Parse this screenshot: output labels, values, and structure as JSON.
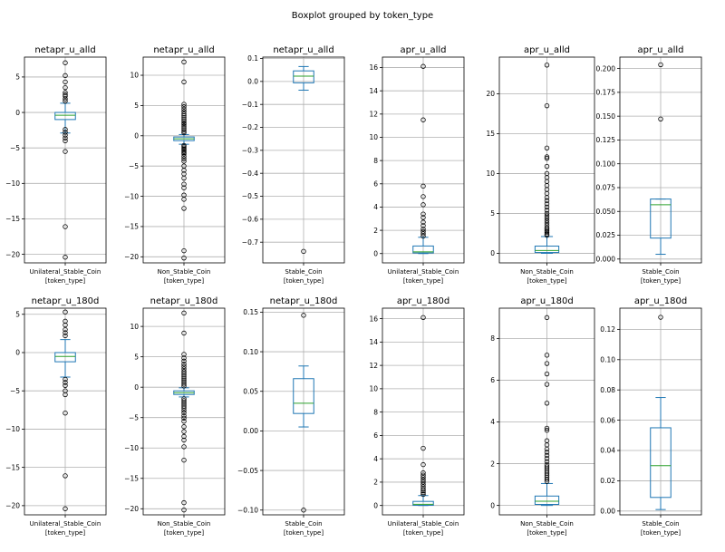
{
  "figure": {
    "suptitle": "Boxplot grouped by token_type"
  },
  "chart_data": [
    {
      "type": "box",
      "title": "netapr_u_alld",
      "category": "Unilateral_Stable_Coin",
      "xlabel": "[token_type]",
      "ylim": [
        -21.2,
        7.8
      ],
      "yticks": [
        5,
        0,
        -5,
        -10,
        -15,
        -20
      ],
      "tick_labels": [
        "5",
        "0",
        "−5",
        "−10",
        "−15",
        "−20"
      ],
      "stats": {
        "whislo": -2.9,
        "q1": -1.0,
        "med": -0.4,
        "q3": 0.0,
        "whishi": 1.3
      },
      "fliers": [
        7.0,
        5.2,
        4.3,
        3.5,
        2.8,
        2.5,
        2.3,
        1.9,
        1.6,
        -2.4,
        -2.8,
        -3.2,
        -3.6,
        -4.0,
        -5.5,
        -16.1,
        -20.4
      ]
    },
    {
      "type": "box",
      "title": "netapr_u_alld",
      "category": "Non_Stable_Coin",
      "xlabel": "[token_type]",
      "ylim": [
        -21.0,
        13.0
      ],
      "yticks": [
        10,
        5,
        0,
        -5,
        -10,
        -15,
        -20
      ],
      "tick_labels": [
        "10",
        "5",
        "0",
        "−5",
        "−10",
        "−15",
        "−20"
      ],
      "stats": {
        "whislo": -1.4,
        "q1": -0.8,
        "med": -0.5,
        "q3": -0.2,
        "whishi": 0.2
      },
      "fliers": [
        12.2,
        8.9,
        5.2,
        4.8,
        4.4,
        4.0,
        3.6,
        3.3,
        3.0,
        2.7,
        2.4,
        2.1,
        1.9,
        1.6,
        1.3,
        1.0,
        0.7,
        0.5,
        -1.6,
        -1.8,
        -2.0,
        -2.2,
        -2.4,
        -2.6,
        -2.8,
        -3.0,
        -3.4,
        -3.8,
        -4.2,
        -5.0,
        -5.7,
        -6.3,
        -7.0,
        -8.0,
        -8.6,
        -9.8,
        -10.5,
        -12.0,
        -19.0,
        -20.2
      ]
    },
    {
      "type": "box",
      "title": "netapr_u_alld",
      "category": "Stable_Coin",
      "xlabel": "[token_type]",
      "ylim": [
        -0.79,
        0.106
      ],
      "yticks": [
        0.1,
        0.0,
        -0.1,
        -0.2,
        -0.3,
        -0.4,
        -0.5,
        -0.6,
        -0.7
      ],
      "tick_labels": [
        "0.1",
        "0.0",
        "−0.1",
        "−0.2",
        "−0.3",
        "−0.4",
        "−0.5",
        "−0.6",
        "−0.7"
      ],
      "stats": {
        "whislo": -0.038,
        "q1": -0.006,
        "med": 0.023,
        "q3": 0.046,
        "whishi": 0.065
      },
      "fliers": [
        -0.74
      ]
    },
    {
      "type": "box",
      "title": "apr_u_alld",
      "category": "Unilateral_Stable_Coin",
      "xlabel": "[token_type]",
      "ylim": [
        -0.8,
        16.9
      ],
      "yticks": [
        16,
        14,
        12,
        10,
        8,
        6,
        4,
        2,
        0
      ],
      "tick_labels": [
        "16",
        "14",
        "12",
        "10",
        "8",
        "6",
        "4",
        "2",
        "0"
      ],
      "stats": {
        "whislo": 0.0,
        "q1": 0.05,
        "med": 0.15,
        "q3": 0.65,
        "whishi": 1.4
      },
      "fliers": [
        16.1,
        11.5,
        5.8,
        4.9,
        4.2,
        3.4,
        3.1,
        2.7,
        2.4,
        2.1,
        1.9,
        1.7,
        1.5
      ]
    },
    {
      "type": "box",
      "title": "apr_u_alld",
      "category": "Non_Stable_Coin",
      "xlabel": "[token_type]",
      "ylim": [
        -1.2,
        24.6
      ],
      "yticks": [
        20,
        15,
        10,
        5,
        0
      ],
      "tick_labels": [
        "20",
        "15",
        "10",
        "5",
        "0"
      ],
      "stats": {
        "whislo": 0.0,
        "q1": 0.1,
        "med": 0.35,
        "q3": 0.9,
        "whishi": 2.1
      },
      "fliers": [
        23.6,
        18.5,
        13.2,
        12.1,
        11.9,
        10.9,
        10.0,
        9.5,
        9.0,
        8.5,
        8.0,
        7.5,
        7.0,
        6.6,
        6.2,
        5.8,
        5.4,
        5.0,
        4.7,
        4.4,
        4.1,
        3.8,
        3.5,
        3.2,
        3.0,
        2.8,
        2.6,
        2.4,
        2.25
      ]
    },
    {
      "type": "box",
      "title": "apr_u_alld",
      "category": "Stable_Coin",
      "xlabel": "[token_type]",
      "ylim": [
        -0.004,
        0.212
      ],
      "yticks": [
        0.2,
        0.175,
        0.15,
        0.125,
        0.1,
        0.075,
        0.05,
        0.025,
        0.0
      ],
      "tick_labels": [
        "0.200",
        "0.175",
        "0.150",
        "0.125",
        "0.100",
        "0.075",
        "0.050",
        "0.025",
        "0.000"
      ],
      "stats": {
        "whislo": 0.005,
        "q1": 0.022,
        "med": 0.057,
        "q3": 0.063,
        "whishi": 0.063
      },
      "fliers": [
        0.204,
        0.147
      ]
    },
    {
      "type": "box",
      "title": "netapr_u_180d",
      "category": "Unilateral_Stable_Coin",
      "xlabel": "[token_type]",
      "ylim": [
        -21.2,
        5.8
      ],
      "yticks": [
        5,
        0,
        -5,
        -10,
        -15,
        -20
      ],
      "tick_labels": [
        "5",
        "0",
        "−5",
        "−10",
        "−15",
        "−20"
      ],
      "stats": {
        "whislo": -3.2,
        "q1": -1.2,
        "med": -0.5,
        "q3": 0.0,
        "whishi": 1.7
      },
      "fliers": [
        5.3,
        4.1,
        3.6,
        3.0,
        2.6,
        2.2,
        -3.5,
        -3.9,
        -4.3,
        -5.0,
        -5.5,
        -7.9,
        -16.1,
        -20.4
      ]
    },
    {
      "type": "box",
      "title": "netapr_u_180d",
      "category": "Non_Stable_Coin",
      "xlabel": "[token_type]",
      "ylim": [
        -21.0,
        13.0
      ],
      "yticks": [
        10,
        5,
        0,
        -5,
        -10,
        -15,
        -20
      ],
      "tick_labels": [
        "10",
        "5",
        "0",
        "−5",
        "−10",
        "−15",
        "−20"
      ],
      "stats": {
        "whislo": -1.6,
        "q1": -1.2,
        "med": -0.9,
        "q3": -0.6,
        "whishi": -0.1
      },
      "fliers": [
        12.2,
        8.9,
        5.4,
        4.8,
        4.3,
        3.8,
        3.4,
        3.0,
        2.6,
        2.3,
        2.0,
        1.7,
        1.4,
        1.1,
        0.8,
        0.5,
        0.2,
        -1.9,
        -2.2,
        -2.5,
        -2.8,
        -3.1,
        -3.4,
        -3.8,
        -4.2,
        -4.7,
        -5.1,
        -5.6,
        -6.5,
        -7.3,
        -8.1,
        -8.7,
        -9.8,
        -12.0,
        -19.0,
        -20.2
      ]
    },
    {
      "type": "box",
      "title": "netapr_u_180d",
      "category": "Stable_Coin",
      "xlabel": "[token_type]",
      "ylim": [
        -0.106,
        0.155
      ],
      "yticks": [
        0.15,
        0.1,
        0.05,
        0.0,
        -0.05,
        -0.1
      ],
      "tick_labels": [
        "0.15",
        "0.10",
        "0.05",
        "0.00",
        "−0.05",
        "−0.10"
      ],
      "stats": {
        "whislo": 0.005,
        "q1": 0.022,
        "med": 0.035,
        "q3": 0.066,
        "whishi": 0.082
      },
      "fliers": [
        0.146,
        -0.1
      ]
    },
    {
      "type": "box",
      "title": "apr_u_180d",
      "category": "Unilateral_Stable_Coin",
      "xlabel": "[token_type]",
      "ylim": [
        -0.8,
        16.9
      ],
      "yticks": [
        16,
        14,
        12,
        10,
        8,
        6,
        4,
        2,
        0
      ],
      "tick_labels": [
        "16",
        "14",
        "12",
        "10",
        "8",
        "6",
        "4",
        "2",
        "0"
      ],
      "stats": {
        "whislo": 0.0,
        "q1": 0.02,
        "med": 0.1,
        "q3": 0.35,
        "whishi": 0.85
      },
      "fliers": [
        16.1,
        4.9,
        3.5,
        2.8,
        2.6,
        2.4,
        2.2,
        2.0,
        1.8,
        1.6,
        1.4,
        1.25,
        1.1,
        0.95
      ]
    },
    {
      "type": "box",
      "title": "apr_u_180d",
      "category": "Non_Stable_Coin",
      "xlabel": "[token_type]",
      "ylim": [
        -0.45,
        9.45
      ],
      "yticks": [
        8,
        6,
        4,
        2,
        0
      ],
      "tick_labels": [
        "8",
        "6",
        "4",
        "2",
        "0"
      ],
      "stats": {
        "whislo": 0.0,
        "q1": 0.05,
        "med": 0.2,
        "q3": 0.45,
        "whishi": 1.05
      },
      "fliers": [
        9.0,
        7.2,
        6.8,
        6.3,
        5.8,
        4.9,
        3.7,
        3.6,
        3.1,
        2.9,
        2.7,
        2.55,
        2.4,
        2.25,
        2.1,
        1.95,
        1.85,
        1.75,
        1.65,
        1.55,
        1.45,
        1.35,
        1.25,
        1.15
      ]
    },
    {
      "type": "box",
      "title": "apr_u_180d",
      "category": "Stable_Coin",
      "xlabel": "[token_type]",
      "ylim": [
        -0.0025,
        0.134
      ],
      "yticks": [
        0.12,
        0.1,
        0.08,
        0.06,
        0.04,
        0.02,
        0.0
      ],
      "tick_labels": [
        "0.12",
        "0.10",
        "0.08",
        "0.06",
        "0.04",
        "0.02",
        "0.00"
      ],
      "stats": {
        "whislo": 0.001,
        "q1": 0.009,
        "med": 0.03,
        "q3": 0.055,
        "whishi": 0.075
      },
      "fliers": [
        0.128
      ]
    }
  ]
}
